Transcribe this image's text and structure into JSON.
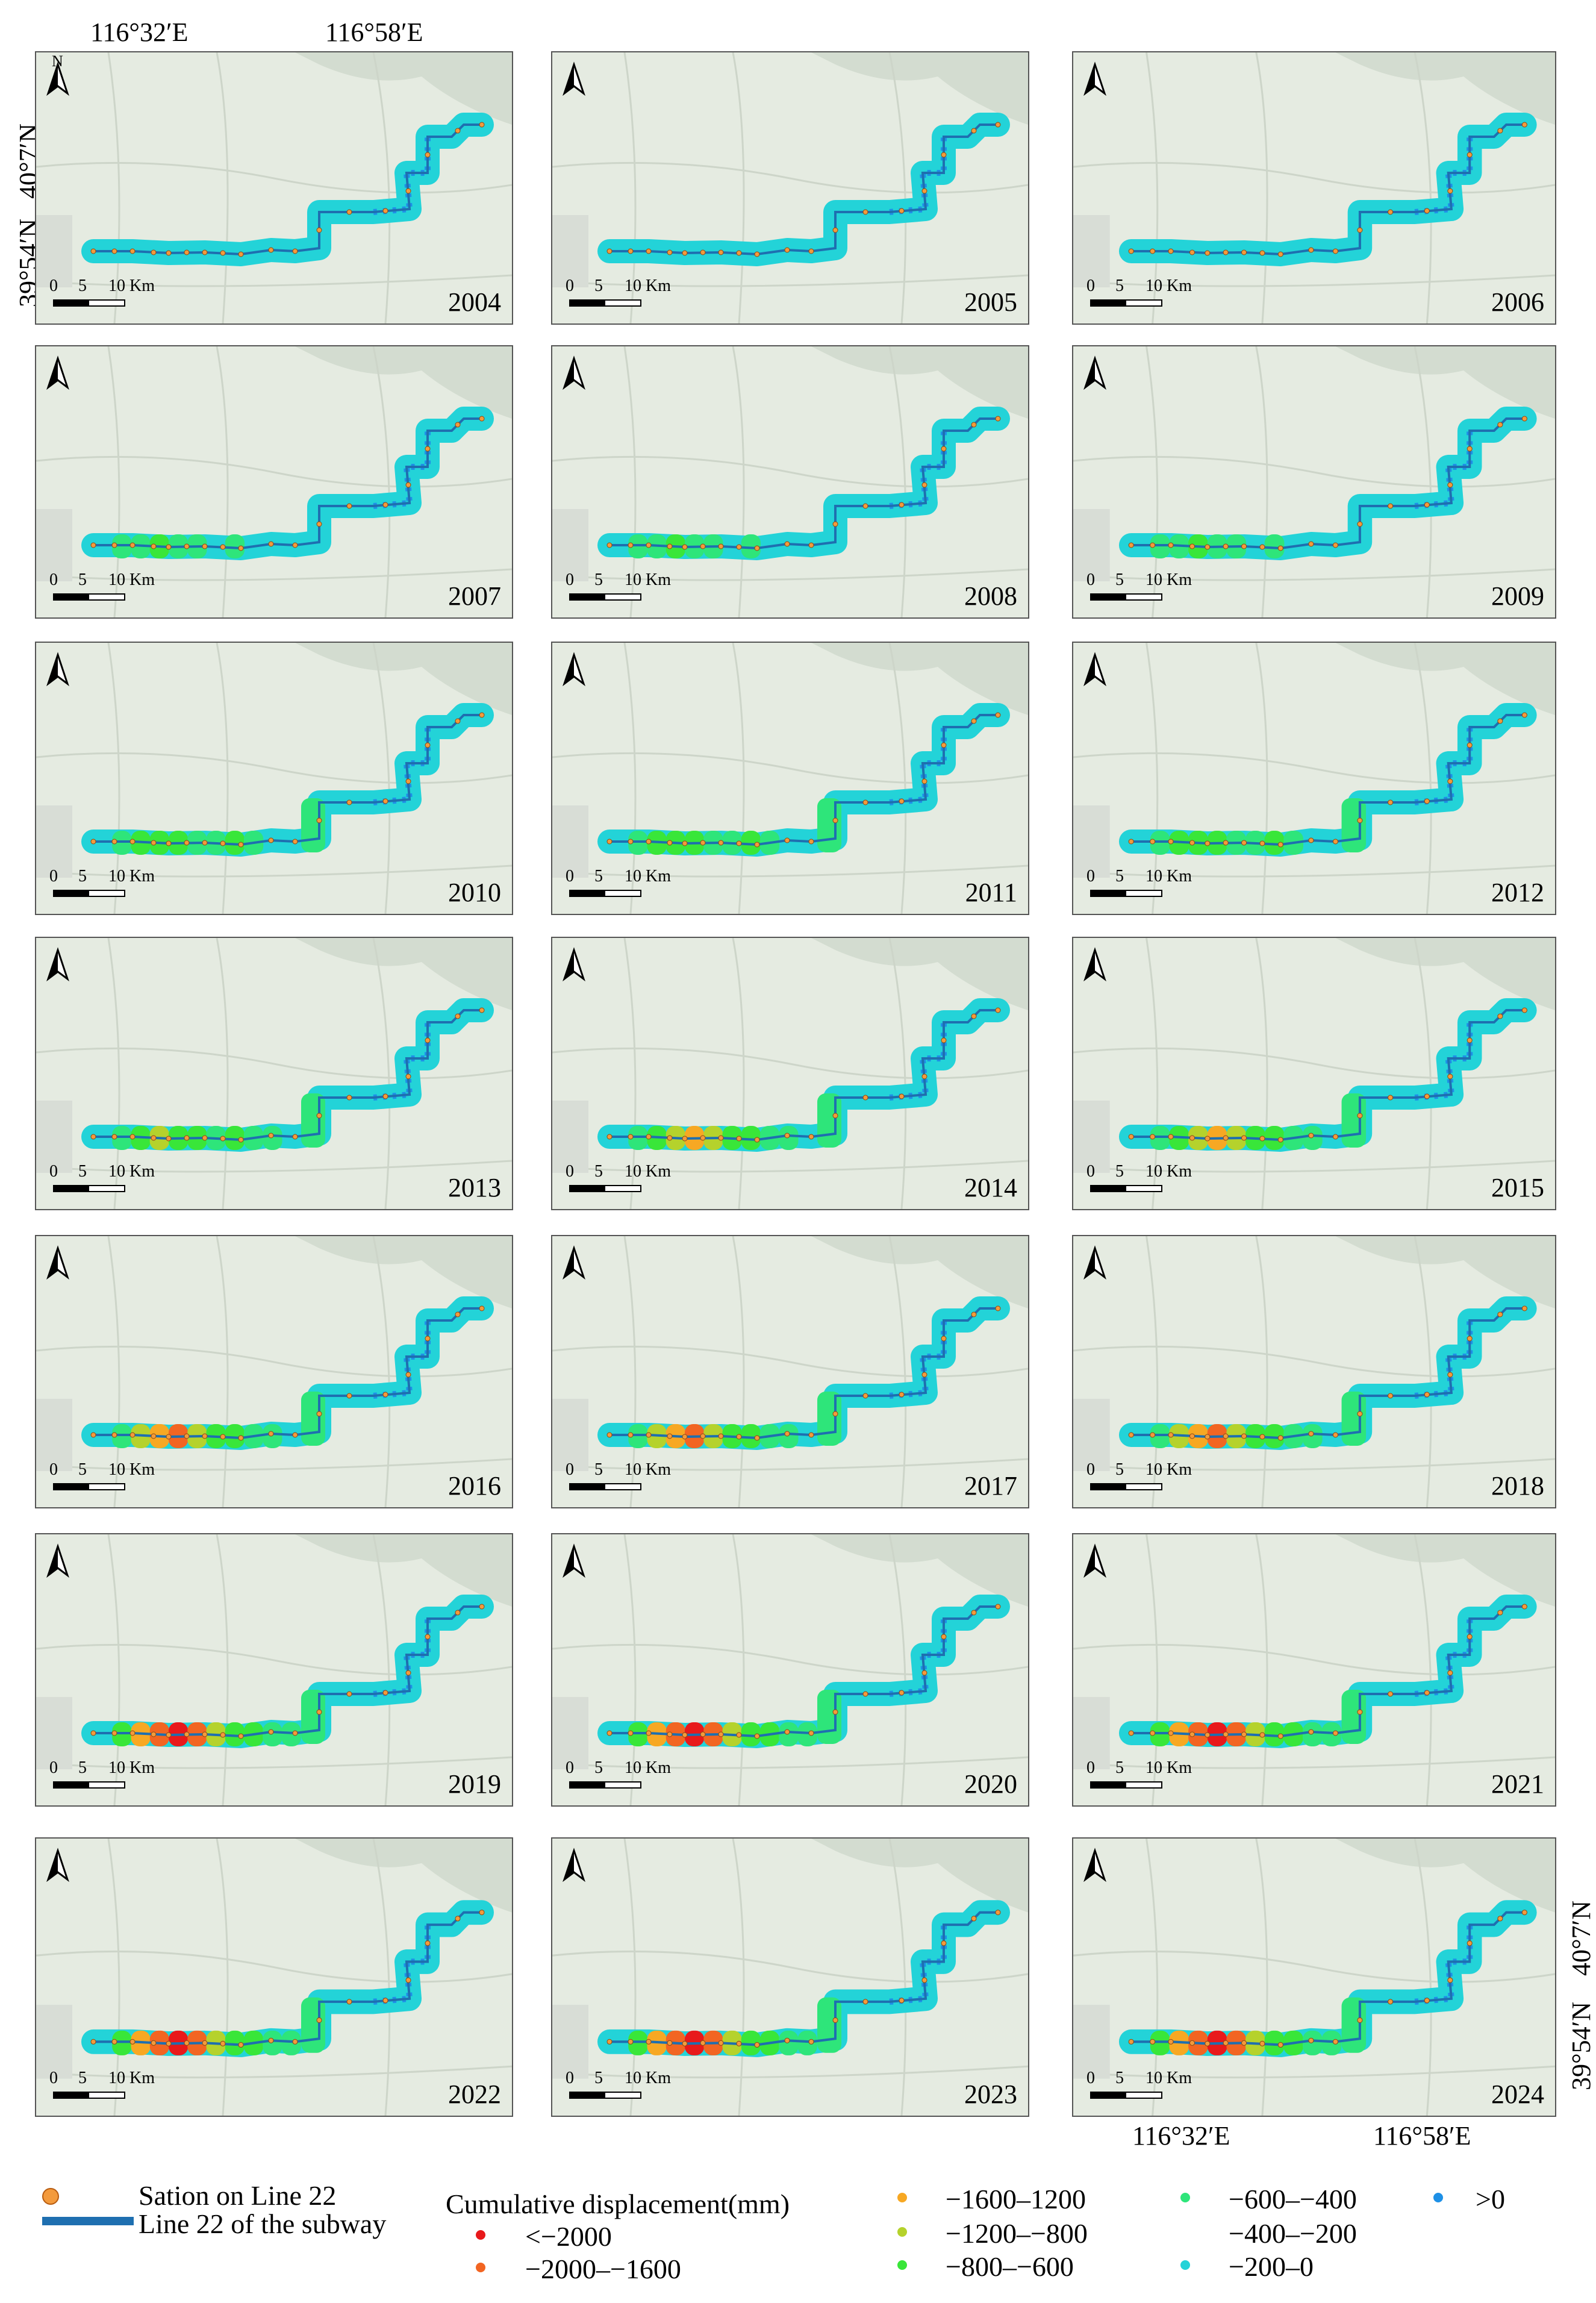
{
  "coords": {
    "top_lon_left": "116°32′E",
    "top_lon_right": "116°58′E",
    "left_lat_top": "40°7′N",
    "left_lat_bottom": "39°54′N",
    "right_lat_top": "40°7′N",
    "right_lat_bottom": "39°54′N",
    "bottom_lon_left": "116°32′E",
    "bottom_lon_right": "116°58′E",
    "north_letter": "N"
  },
  "scale": {
    "n0": "0",
    "n5": "5",
    "n10": "10 Km"
  },
  "panels": [
    {
      "year": "2004",
      "profile": 0
    },
    {
      "year": "2005",
      "profile": 0
    },
    {
      "year": "2006",
      "profile": 0
    },
    {
      "year": "2007",
      "profile": 1
    },
    {
      "year": "2008",
      "profile": 1
    },
    {
      "year": "2009",
      "profile": 1
    },
    {
      "year": "2010",
      "profile": 2
    },
    {
      "year": "2011",
      "profile": 2
    },
    {
      "year": "2012",
      "profile": 2
    },
    {
      "year": "2013",
      "profile": 3
    },
    {
      "year": "2014",
      "profile": 4
    },
    {
      "year": "2015",
      "profile": 4
    },
    {
      "year": "2016",
      "profile": 5
    },
    {
      "year": "2017",
      "profile": 5
    },
    {
      "year": "2018",
      "profile": 5
    },
    {
      "year": "2019",
      "profile": 6
    },
    {
      "year": "2020",
      "profile": 6
    },
    {
      "year": "2021",
      "profile": 6
    },
    {
      "year": "2022",
      "profile": 6
    },
    {
      "year": "2023",
      "profile": 6
    },
    {
      "year": "2024",
      "profile": 6
    }
  ],
  "legend": {
    "station": "Sation on Line 22",
    "line": "Line 22 of the subway",
    "title": "Cumulative displacement(mm)",
    "classes": [
      {
        "label": "<−2000",
        "color": "#e8191b"
      },
      {
        "label": "−2000–−1600",
        "color": "#f26522"
      },
      {
        "label": "−1600–1200",
        "color": "#f7a823"
      },
      {
        "label": "−1200–−800",
        "color": "#b5d22c"
      },
      {
        "label": "−800–−600",
        "color": "#39e639"
      },
      {
        "label": "−600–−400",
        "color": "#2ee57a"
      },
      {
        "label": "−400–−200",
        "color": ""
      },
      {
        "label": "−200–0",
        "color": "#23d3d8"
      },
      {
        "label": ">0",
        "color": "#1e90e6"
      }
    ]
  },
  "colors": {
    "station": "#f39a3c",
    "line": "#1e6fb0",
    "base_map": "#e5ebe1"
  }
}
